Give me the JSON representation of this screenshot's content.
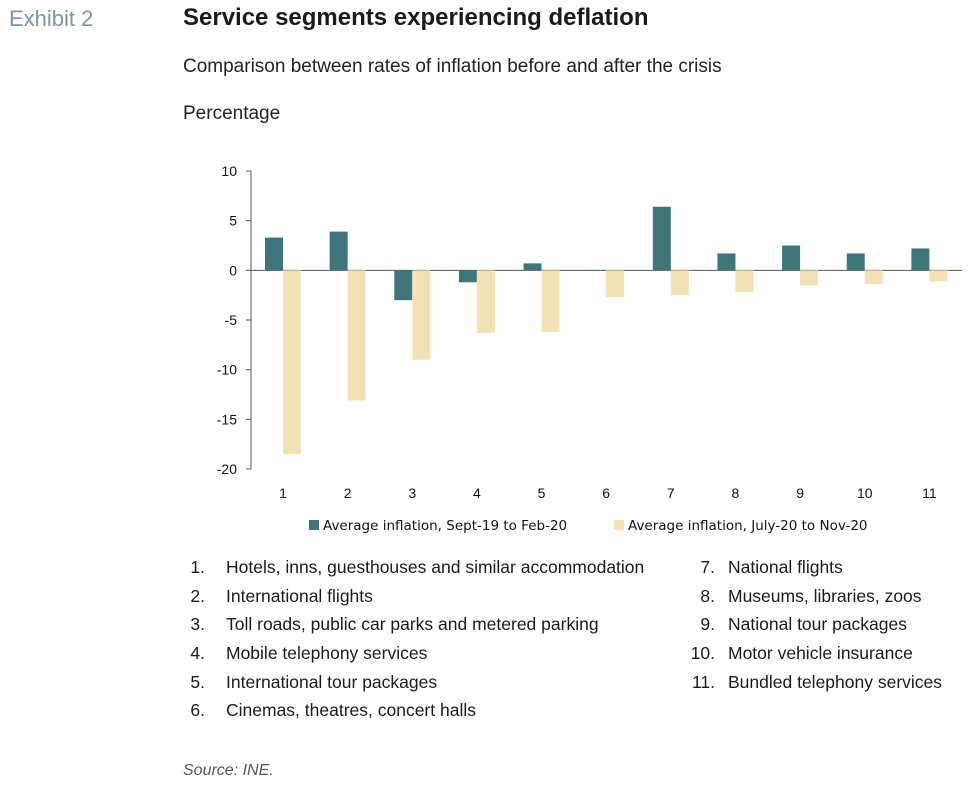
{
  "exhibit_label": "Exhibit 2",
  "title": "Service segments experiencing deflation",
  "subtitle": "Comparison between rates of inflation before and after the crisis",
  "unit_label": "Percentage",
  "source": "Source: INE.",
  "colors": {
    "series1": "#3f7479",
    "series2": "#f2e1b4",
    "axis": "#555555"
  },
  "chart_data": {
    "type": "bar",
    "categories": [
      "1",
      "2",
      "3",
      "4",
      "5",
      "6",
      "7",
      "8",
      "9",
      "10",
      "11"
    ],
    "series": [
      {
        "name": "Average inflation, Sept-19 to Feb-20",
        "values": [
          3.3,
          3.9,
          -3.0,
          -1.2,
          0.7,
          0.0,
          6.4,
          1.7,
          2.5,
          1.7,
          2.2
        ]
      },
      {
        "name": "Average inflation, July-20 to Nov-20",
        "values": [
          -18.5,
          -13.1,
          -9.0,
          -6.3,
          -6.2,
          -2.7,
          -2.5,
          -2.2,
          -1.5,
          -1.4,
          -1.1
        ]
      }
    ],
    "yticks": [
      "10",
      "5",
      "0",
      "-5",
      "-10",
      "-15",
      "-20"
    ],
    "ylim": [
      -20,
      10
    ],
    "legend_position": "bottom"
  },
  "notes": [
    {
      "num": "1.",
      "text": "Hotels, inns, guesthouses and similar accommodation"
    },
    {
      "num": "2.",
      "text": "International flights"
    },
    {
      "num": "3.",
      "text": "Toll roads, public car parks and metered parking"
    },
    {
      "num": "4.",
      "text": "Mobile telephony services"
    },
    {
      "num": "5.",
      "text": "International tour packages"
    },
    {
      "num": "6.",
      "text": "Cinemas, theatres, concert halls"
    },
    {
      "num": "7.",
      "text": "National flights"
    },
    {
      "num": "8.",
      "text": "Museums, libraries, zoos"
    },
    {
      "num": "9.",
      "text": "National tour packages"
    },
    {
      "num": "10.",
      "text": "Motor vehicle insurance"
    },
    {
      "num": "11.",
      "text": "Bundled telephony services"
    }
  ]
}
